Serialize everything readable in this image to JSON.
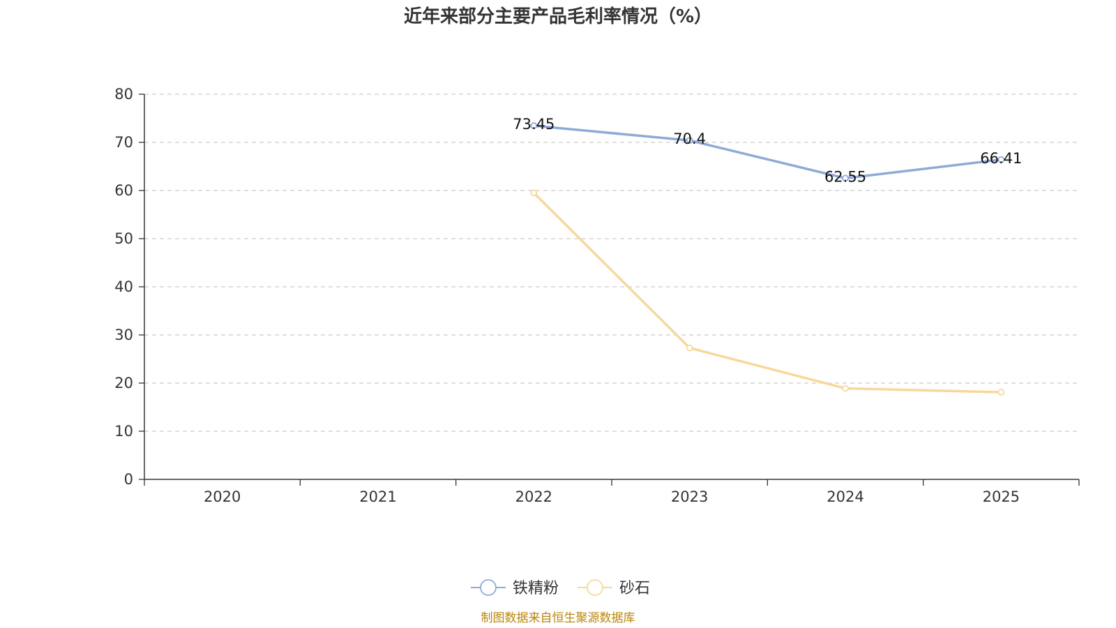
{
  "chart_data": {
    "type": "line",
    "title": "近年来部分主要产品毛利率情况（%）",
    "categories": [
      "2020",
      "2021",
      "2022",
      "2023",
      "2024",
      "2025"
    ],
    "ylim": [
      0,
      80
    ],
    "yticks": [
      0,
      10,
      20,
      30,
      40,
      50,
      60,
      70,
      80
    ],
    "grid": true,
    "legend_position": "bottom-center",
    "series": [
      {
        "name": "铁精粉",
        "color": "#8eaad8",
        "values": [
          null,
          null,
          73.45,
          70.4,
          62.55,
          66.41
        ],
        "labels": [
          null,
          null,
          "73.45",
          "70.4",
          "62.55",
          "66.41"
        ]
      },
      {
        "name": "砂石",
        "color": "#f8d89a",
        "values": [
          null,
          null,
          59.5,
          27.3,
          18.9,
          18.1
        ],
        "labels": [
          null,
          null,
          null,
          null,
          null,
          null
        ]
      }
    ]
  },
  "source": "制图数据来自恒生聚源数据库"
}
